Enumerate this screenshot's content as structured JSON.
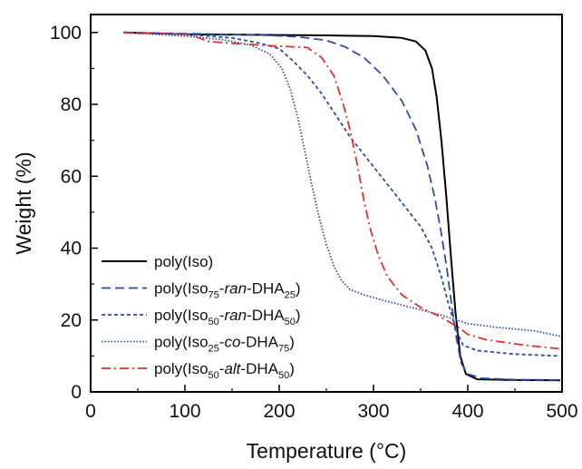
{
  "chart_data": {
    "type": "line",
    "xlabel": "Temperature (°C)",
    "ylabel": "Weight (%)",
    "xlim": [
      0,
      500
    ],
    "ylim": [
      0,
      105
    ],
    "x_ticks": [
      0,
      100,
      200,
      300,
      400,
      500
    ],
    "y_ticks": [
      0,
      20,
      40,
      60,
      80,
      100
    ],
    "x_tick_labels": [
      "0",
      "100",
      "200",
      "300",
      "400",
      "500"
    ],
    "y_tick_labels": [
      "0",
      "20",
      "40",
      "60",
      "80",
      "100"
    ],
    "legend_position": "bottom-left",
    "series": [
      {
        "name": "poly(Iso)",
        "legend_parts": [
          {
            "t": "poly(Iso)",
            "s": "n"
          }
        ],
        "color": "#000000",
        "dash": "solid",
        "points": [
          [
            35,
            100
          ],
          [
            100,
            99.5
          ],
          [
            200,
            99.3
          ],
          [
            250,
            99.2
          ],
          [
            300,
            99
          ],
          [
            330,
            98.5
          ],
          [
            345,
            97.5
          ],
          [
            355,
            95
          ],
          [
            362,
            90
          ],
          [
            367,
            82
          ],
          [
            372,
            70
          ],
          [
            377,
            55
          ],
          [
            382,
            38
          ],
          [
            387,
            22
          ],
          [
            392,
            10
          ],
          [
            398,
            5
          ],
          [
            410,
            3.5
          ],
          [
            450,
            3.3
          ],
          [
            498,
            3.2
          ]
        ]
      },
      {
        "name": "poly(Iso75-ran-DHA25)",
        "legend_parts": [
          {
            "t": "poly(Iso",
            "s": "n"
          },
          {
            "t": "75",
            "s": "sub"
          },
          {
            "t": "-",
            "s": "n"
          },
          {
            "t": "ran",
            "s": "i"
          },
          {
            "t": "-DHA",
            "s": "n"
          },
          {
            "t": "25",
            "s": "sub"
          },
          {
            "t": ")",
            "s": "n"
          }
        ],
        "color": "#2a4ea8",
        "dash": "dash",
        "points": [
          [
            35,
            100
          ],
          [
            100,
            99.7
          ],
          [
            180,
            99.3
          ],
          [
            220,
            98.8
          ],
          [
            250,
            97.8
          ],
          [
            270,
            96
          ],
          [
            290,
            93
          ],
          [
            310,
            88
          ],
          [
            330,
            81
          ],
          [
            345,
            73
          ],
          [
            357,
            63
          ],
          [
            365,
            54
          ],
          [
            372,
            44
          ],
          [
            378,
            34
          ],
          [
            383,
            24
          ],
          [
            388,
            15
          ],
          [
            393,
            8
          ],
          [
            400,
            5
          ],
          [
            415,
            3.8
          ],
          [
            450,
            3.4
          ],
          [
            498,
            3.3
          ]
        ]
      },
      {
        "name": "poly(Iso50-ran-DHA50)",
        "legend_parts": [
          {
            "t": "poly(Iso",
            "s": "n"
          },
          {
            "t": "50",
            "s": "sub"
          },
          {
            "t": "-",
            "s": "n"
          },
          {
            "t": "ran",
            "s": "i"
          },
          {
            "t": "-DHA",
            "s": "n"
          },
          {
            "t": "50",
            "s": "sub"
          },
          {
            "t": ")",
            "s": "n"
          }
        ],
        "color": "#2a4ea8",
        "dash": "short-dash",
        "points": [
          [
            35,
            100
          ],
          [
            100,
            99.5
          ],
          [
            150,
            98.5
          ],
          [
            180,
            97
          ],
          [
            200,
            95.5
          ],
          [
            215,
            92
          ],
          [
            230,
            88
          ],
          [
            245,
            83
          ],
          [
            260,
            77
          ],
          [
            275,
            71
          ],
          [
            290,
            66
          ],
          [
            305,
            61
          ],
          [
            320,
            56
          ],
          [
            335,
            51
          ],
          [
            350,
            46
          ],
          [
            362,
            40
          ],
          [
            372,
            32
          ],
          [
            380,
            24
          ],
          [
            388,
            17
          ],
          [
            395,
            13
          ],
          [
            410,
            11.5
          ],
          [
            450,
            10.5
          ],
          [
            498,
            10
          ]
        ]
      },
      {
        "name": "poly(Iso25-co-DHA75)",
        "legend_parts": [
          {
            "t": "poly(Iso",
            "s": "n"
          },
          {
            "t": "25",
            "s": "sub"
          },
          {
            "t": "-",
            "s": "n"
          },
          {
            "t": "co",
            "s": "i"
          },
          {
            "t": "-DHA",
            "s": "n"
          },
          {
            "t": "75",
            "s": "sub"
          },
          {
            "t": ")",
            "s": "n"
          }
        ],
        "color": "#2a4ea8",
        "dash": "dot",
        "points": [
          [
            35,
            100
          ],
          [
            100,
            99
          ],
          [
            140,
            98
          ],
          [
            170,
            96.5
          ],
          [
            190,
            94
          ],
          [
            203,
            90
          ],
          [
            212,
            84
          ],
          [
            220,
            76
          ],
          [
            228,
            66
          ],
          [
            235,
            57
          ],
          [
            242,
            49
          ],
          [
            250,
            41
          ],
          [
            258,
            35
          ],
          [
            266,
            31
          ],
          [
            275,
            28.5
          ],
          [
            290,
            27
          ],
          [
            310,
            25.5
          ],
          [
            340,
            23.5
          ],
          [
            370,
            21.5
          ],
          [
            400,
            19
          ],
          [
            430,
            18
          ],
          [
            470,
            17
          ],
          [
            498,
            15.5
          ]
        ]
      },
      {
        "name": "poly(Iso50-alt-DHA50)",
        "legend_parts": [
          {
            "t": "poly(Iso",
            "s": "n"
          },
          {
            "t": "50",
            "s": "sub"
          },
          {
            "t": "-",
            "s": "n"
          },
          {
            "t": "alt",
            "s": "i"
          },
          {
            "t": "-DHA",
            "s": "n"
          },
          {
            "t": "50",
            "s": "sub"
          },
          {
            "t": ")",
            "s": "n"
          }
        ],
        "color": "#e0302a",
        "dash": "dash-dot",
        "points": [
          [
            35,
            100
          ],
          [
            100,
            99.5
          ],
          [
            115,
            98.5
          ],
          [
            125,
            97.5
          ],
          [
            150,
            97
          ],
          [
            200,
            96.2
          ],
          [
            230,
            95.8
          ],
          [
            245,
            93
          ],
          [
            258,
            88
          ],
          [
            268,
            80
          ],
          [
            276,
            72
          ],
          [
            283,
            63
          ],
          [
            290,
            53
          ],
          [
            297,
            45
          ],
          [
            305,
            38
          ],
          [
            315,
            32
          ],
          [
            330,
            27
          ],
          [
            350,
            23.5
          ],
          [
            370,
            21
          ],
          [
            390,
            18
          ],
          [
            400,
            16
          ],
          [
            420,
            14.5
          ],
          [
            460,
            13
          ],
          [
            498,
            12
          ]
        ]
      }
    ]
  }
}
